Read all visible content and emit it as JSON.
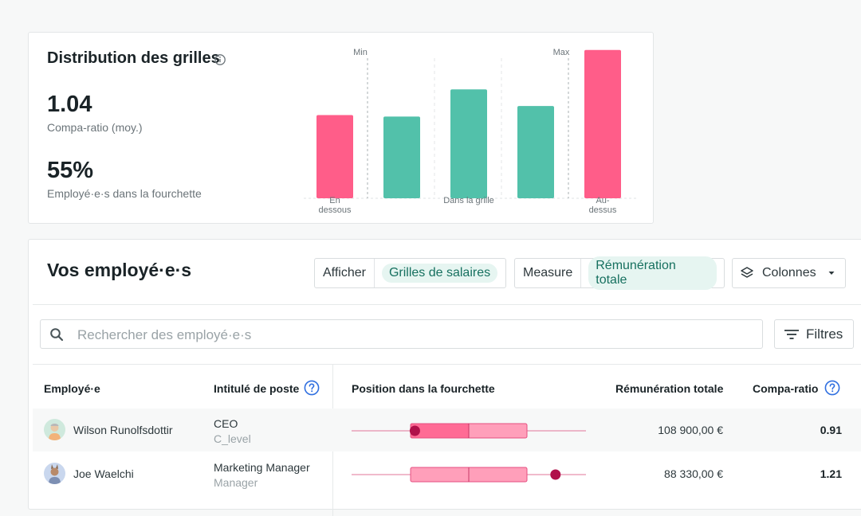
{
  "distribution": {
    "title": "Distribution des grilles",
    "compa_ratio": {
      "value": "1.04",
      "label": "Compa-ratio (moy.)"
    },
    "in_range": {
      "value": "55%",
      "label": "Employé·e·s dans la fourchette"
    },
    "min_label": "Min",
    "max_label": "Max",
    "colors": {
      "out_of_range": "#ff5d89",
      "in_range": "#52c1aa"
    }
  },
  "chart_data": {
    "type": "bar",
    "categories": [
      "En dessous",
      "",
      "Dans la grille",
      "",
      "Au-dessus"
    ],
    "values": [
      55,
      54,
      72,
      61,
      98
    ],
    "bar_groups": [
      "out",
      "in",
      "in",
      "in",
      "out"
    ],
    "xlabels": [
      {
        "lines": [
          "En",
          "dessous"
        ],
        "bar": 0
      },
      {
        "lines": [
          "Dans la grille"
        ],
        "bar": 2
      },
      {
        "lines": [
          "Au-",
          "dessus"
        ],
        "bar": 4
      }
    ],
    "reference_lines": [
      "Min",
      "Max"
    ],
    "title": "",
    "xlabel": "",
    "ylabel": ""
  },
  "employees": {
    "title": "Vos employé·e·s",
    "show": {
      "label": "Afficher",
      "value": "Grilles de salaires"
    },
    "measure": {
      "label": "Measure",
      "value": "Rémunération totale"
    },
    "columns_label": "Colonnes",
    "search_placeholder": "Rechercher des employé·e·s",
    "filters_label": "Filtres",
    "headers": {
      "employee": "Employé·e",
      "job_title": "Intitulé de poste",
      "position": "Position dans la fourchette",
      "total_comp": "Rémunération totale",
      "compa_ratio": "Compa-ratio"
    },
    "rows": [
      {
        "name": "Wilson Runolfsdottir",
        "title": "CEO",
        "level": "C_level",
        "salary": "108 900,00 €",
        "ratio": "0.91",
        "marker_position": 0.27,
        "avatar": "avatar-icon"
      },
      {
        "name": "Joe Waelchi",
        "title": "Marketing Manager",
        "level": "Manager",
        "salary": "88 330,00 €",
        "ratio": "1.21",
        "marker_position": 0.87,
        "avatar": "avatar-icon"
      }
    ]
  }
}
